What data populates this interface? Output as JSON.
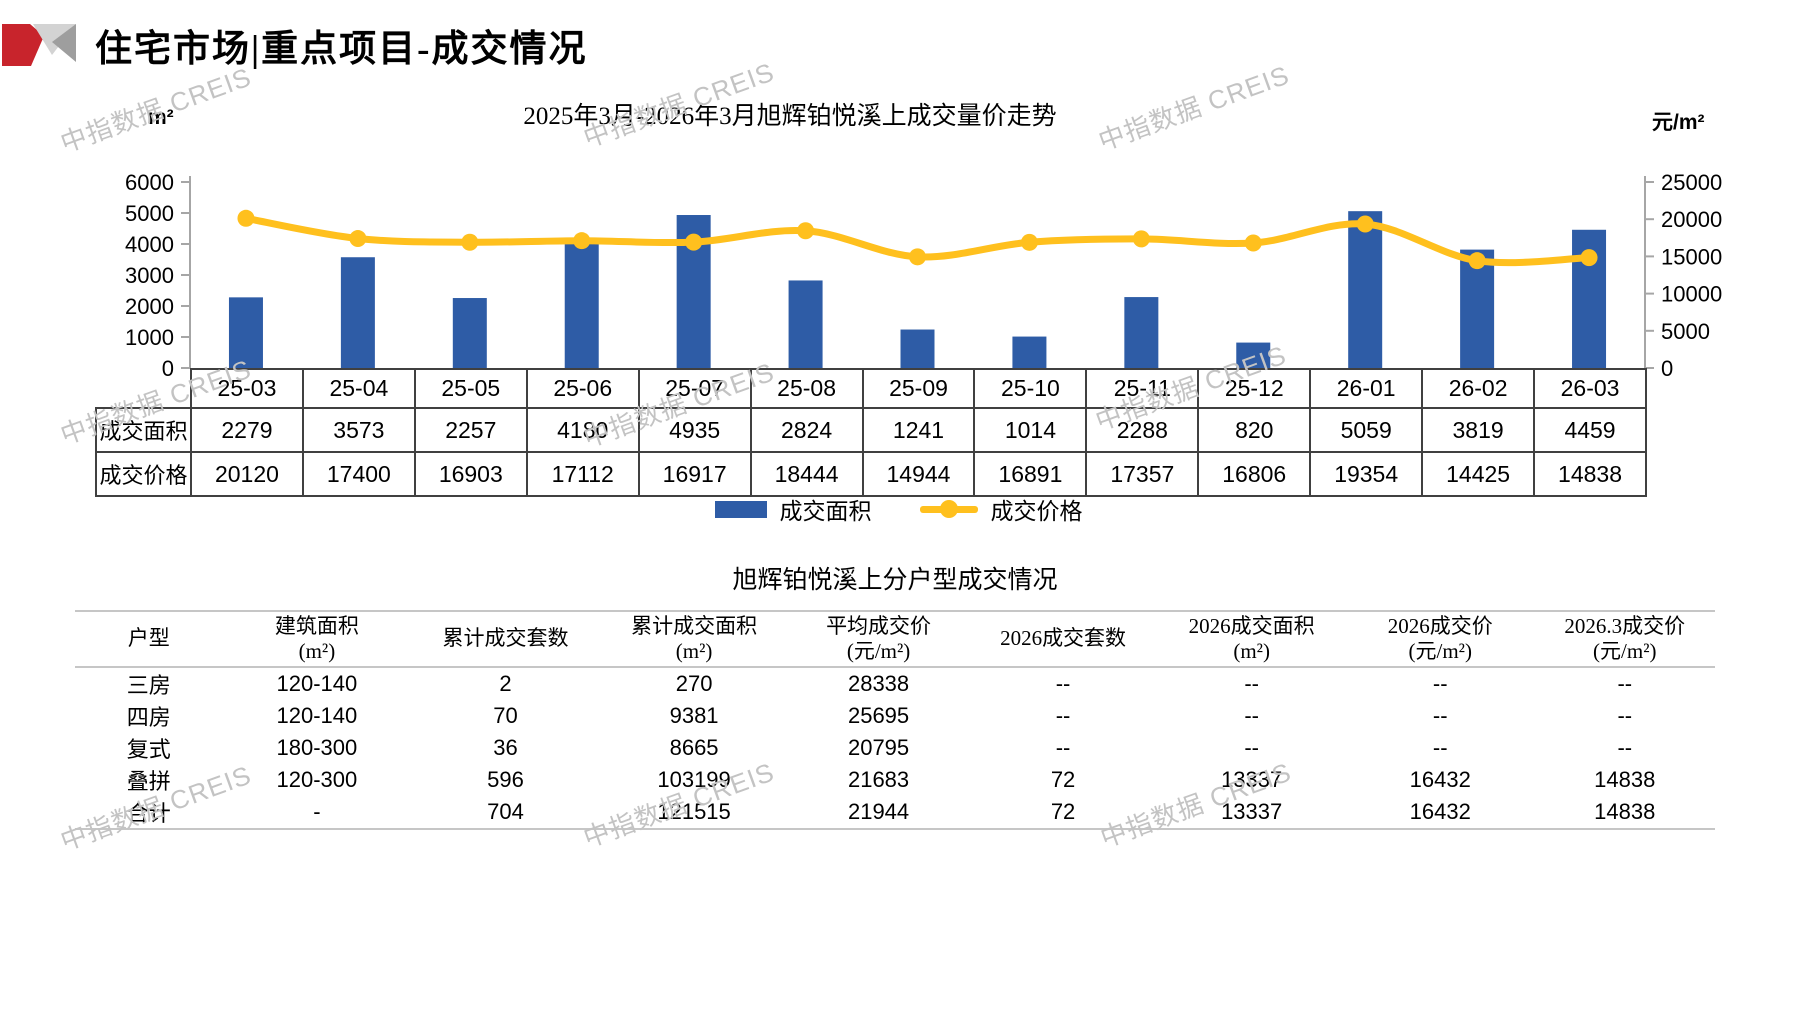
{
  "header": {
    "title": "住宅市场|重点项目-成交情况"
  },
  "watermark": {
    "text": "中指数据 CREIS"
  },
  "colors": {
    "bar_blue": "#2E5CA6",
    "line_yellow": "#FFC01E",
    "axis_gray": "#A6A6A6",
    "logo_red": "#C8242C",
    "logo_gray_light": "#D3D3D3",
    "logo_gray_mid": "#9E9E9E"
  },
  "chart_data": {
    "type": "bar+line combo",
    "title": "2025年3月-2026年3月旭辉铂悦溪上成交量价走势",
    "categories": [
      "25-03",
      "25-04",
      "25-05",
      "25-06",
      "25-07",
      "25-08",
      "25-09",
      "25-10",
      "25-11",
      "25-12",
      "26-01",
      "26-02",
      "26-03"
    ],
    "series": [
      {
        "name": "成交面积",
        "type": "bar",
        "axis": "left",
        "unit": "m²",
        "color": "#2E5CA6",
        "values": [
          2279,
          3573,
          2257,
          4180,
          4935,
          2824,
          1241,
          1014,
          2288,
          820,
          5059,
          3819,
          4459
        ]
      },
      {
        "name": "成交价格",
        "type": "line",
        "axis": "right",
        "unit": "元/m²",
        "color": "#FFC01E",
        "values": [
          20120,
          17400,
          16903,
          17112,
          16917,
          18444,
          14944,
          16891,
          17357,
          16806,
          19354,
          14425,
          14838
        ]
      }
    ],
    "left_axis": {
      "label": "m²",
      "min": 0,
      "max": 6000,
      "step": 1000
    },
    "right_axis": {
      "label": "元/m²",
      "min": 0,
      "max": 25000,
      "step": 5000
    },
    "legend": [
      "成交面积",
      "成交价格"
    ],
    "legend_position": "bottom",
    "grid": false
  },
  "type_table": {
    "title": "旭辉铂悦溪上分户型成交情况",
    "headers": [
      [
        "户型",
        ""
      ],
      [
        "建筑面积",
        "(m²)"
      ],
      [
        "累计成交套数",
        ""
      ],
      [
        "累计成交面积",
        "(m²)"
      ],
      [
        "平均成交价",
        "(元/m²)"
      ],
      [
        "2026成交套数",
        ""
      ],
      [
        "2026成交面积",
        "(m²)"
      ],
      [
        "2026成交价",
        "(元/m²)"
      ],
      [
        "2026.3成交价",
        "(元/m²)"
      ]
    ],
    "rows": [
      [
        "三房",
        "120-140",
        "2",
        "270",
        "28338",
        "--",
        "--",
        "--",
        "--"
      ],
      [
        "四房",
        "120-140",
        "70",
        "9381",
        "25695",
        "--",
        "--",
        "--",
        "--"
      ],
      [
        "复式",
        "180-300",
        "36",
        "8665",
        "20795",
        "--",
        "--",
        "--",
        "--"
      ],
      [
        "叠拼",
        "120-300",
        "596",
        "103199",
        "21683",
        "72",
        "13337",
        "16432",
        "14838"
      ],
      [
        "合计",
        "-",
        "704",
        "121515",
        "21944",
        "72",
        "13337",
        "16432",
        "14838"
      ]
    ]
  }
}
